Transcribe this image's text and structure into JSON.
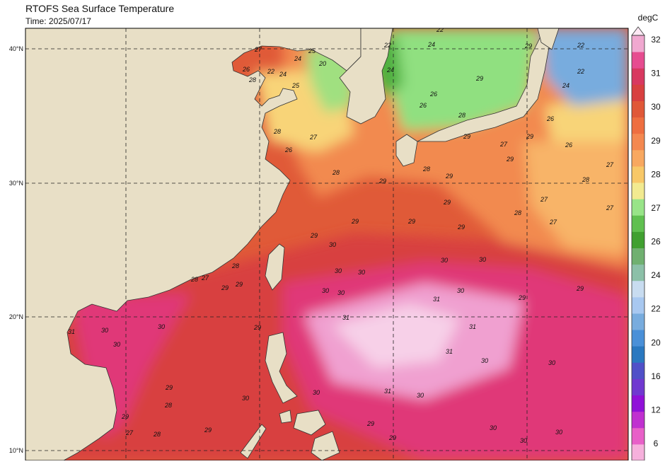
{
  "header": {
    "title": "RTOFS Sea Surface Temperature",
    "time": "Time: 2025/07/17"
  },
  "map": {
    "lat_labels": [
      "40°N",
      "30°N",
      "20°N",
      "10°N"
    ],
    "contour_labels": [
      27,
      26,
      28,
      25,
      24,
      20,
      22,
      24,
      25,
      22,
      24,
      22,
      24,
      29,
      26,
      26,
      28,
      29,
      27,
      29,
      29,
      22,
      24,
      26,
      26,
      29,
      22,
      27,
      28,
      26,
      28,
      29,
      28,
      29,
      29,
      29,
      28,
      27,
      27,
      27,
      28,
      27,
      29,
      29,
      29,
      30,
      30,
      30,
      30,
      30,
      29,
      29,
      30,
      31,
      30,
      30,
      28,
      29,
      29,
      27,
      28,
      29,
      31,
      31,
      30,
      30,
      31,
      30,
      31,
      30,
      30,
      29,
      28,
      30,
      31,
      30,
      30,
      29,
      27,
      28,
      29,
      29,
      30,
      30,
      29,
      30
    ]
  },
  "colorbar": {
    "unit": "degC",
    "ticks": [
      6,
      12,
      16,
      20,
      22,
      24,
      26,
      27,
      28,
      29,
      30,
      31,
      32
    ],
    "colors": [
      "#f6b0dc",
      "#e860c8",
      "#c030d0",
      "#9010d8",
      "#7038d0",
      "#5050c8",
      "#2a78c0",
      "#4a90d8",
      "#78acde",
      "#a8c8f0",
      "#c8dcf0",
      "#8cc0a8",
      "#70b070",
      "#40a030",
      "#60c050",
      "#98e488",
      "#f2ea90",
      "#f8c868",
      "#f8a860",
      "#f48850",
      "#ee6e40",
      "#e05838",
      "#d84040",
      "#d83860",
      "#e64c90",
      "#f0a8d0",
      "#fde8f4"
    ]
  }
}
